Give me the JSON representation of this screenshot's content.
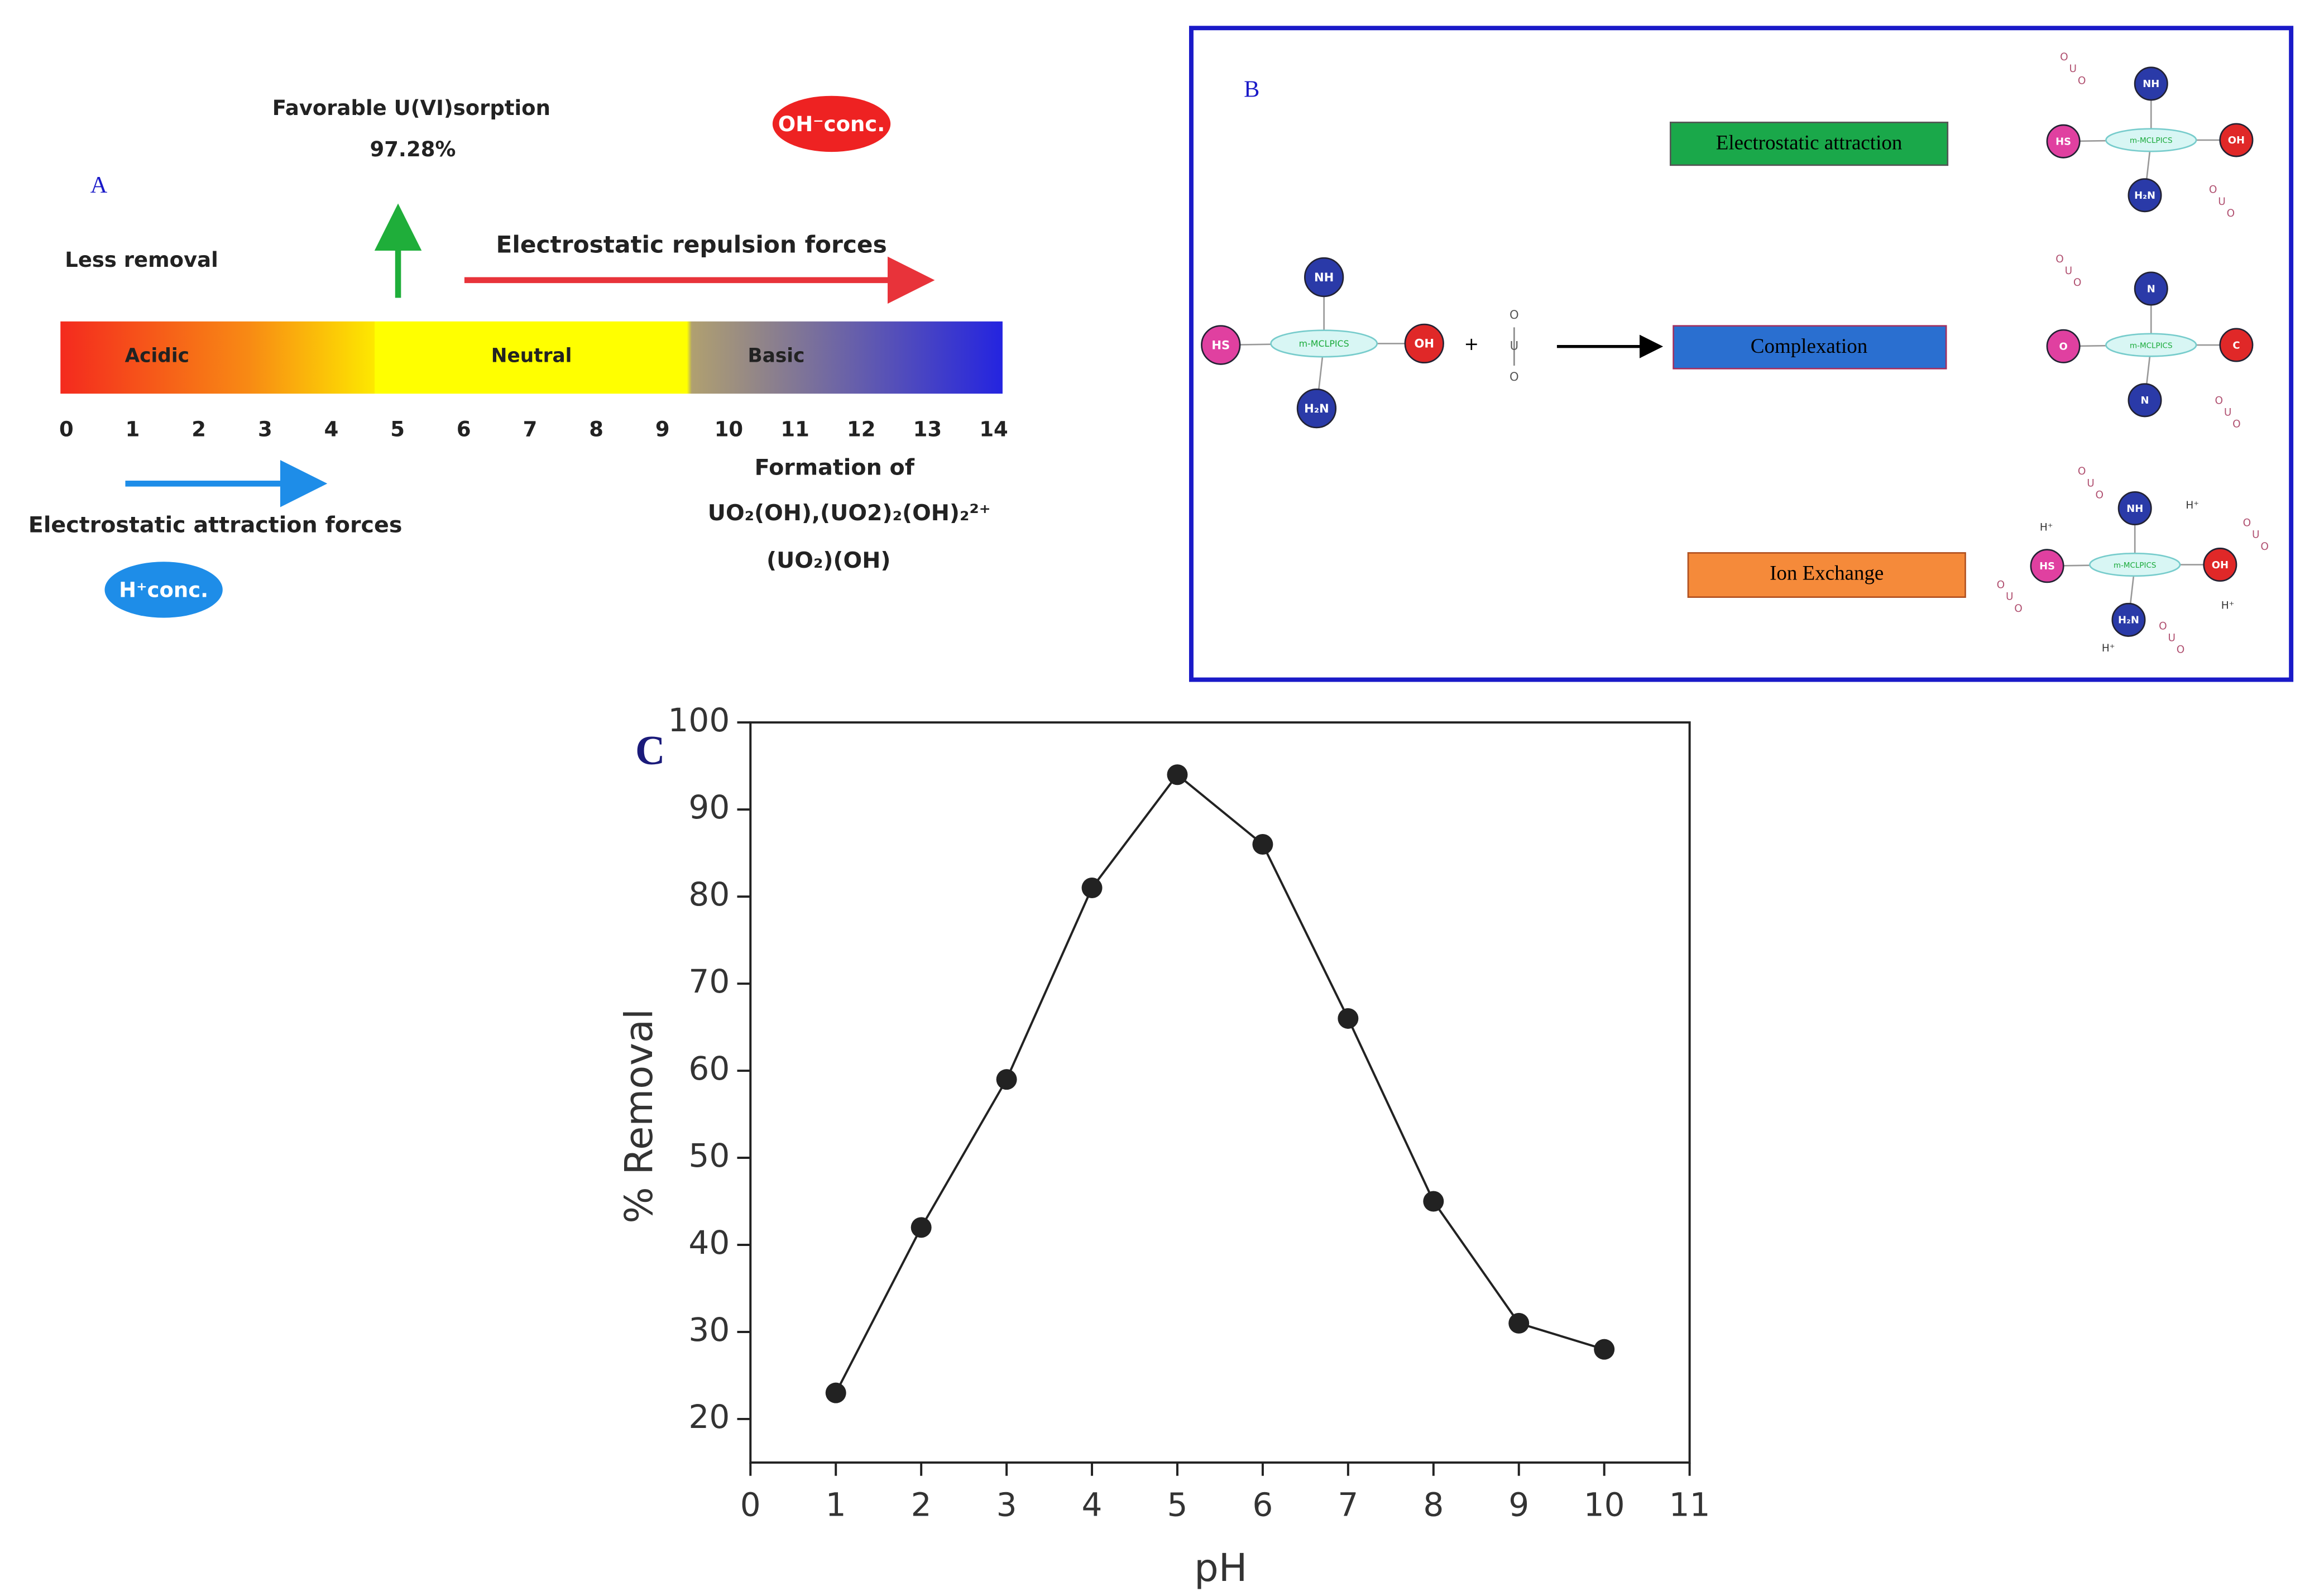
{
  "panel_a": {
    "label": "A",
    "favorable": "Favorable U(VI)sorption",
    "favorable_value": "97.28%",
    "oh_conc": "OH⁻conc.",
    "less_removal": "Less removal",
    "repulsion": "Electrostatic repulsion forces",
    "regions": [
      "Acidic",
      "Neutral",
      "Basic"
    ],
    "scale": [
      "0",
      "1",
      "2",
      "3",
      "4",
      "5",
      "6",
      "7",
      "8",
      "9",
      "10",
      "11",
      "12",
      "13",
      "14"
    ],
    "attraction": "Electrostatic attraction forces",
    "h_conc": "H⁺conc.",
    "formation": [
      "Formation of",
      "UO₂(OH),(UO2)₂(OH)₂²⁺",
      "(UO₂)(OH)"
    ]
  },
  "panel_b": {
    "label": "B",
    "mechanisms": [
      "Electrostatic attraction",
      "Complexation",
      "Ion Exchange"
    ],
    "core": "m-MCLPICS",
    "groups": [
      "NH",
      "HS",
      "OH",
      "H₂N"
    ],
    "complexed_groups": [
      "N",
      "O",
      "C",
      "N"
    ],
    "uranyl": [
      "O",
      "U",
      "O"
    ],
    "plus": "+",
    "proton": "H⁺"
  },
  "chart_data": {
    "type": "line",
    "title": "C",
    "x_label": "pH",
    "y_label": "% Removal",
    "x": [
      1,
      2,
      3,
      4,
      5,
      6,
      7,
      8,
      9,
      10
    ],
    "values": [
      23,
      42,
      59,
      81,
      94,
      86,
      66,
      45,
      31,
      28
    ],
    "color": "#222222",
    "xlim": [
      0,
      11
    ],
    "xticks": [
      0,
      1,
      2,
      3,
      4,
      5,
      6,
      7,
      8,
      9,
      10,
      11
    ],
    "ylim": [
      15,
      100
    ],
    "yticks": [
      20,
      30,
      40,
      50,
      60,
      70,
      80,
      90,
      100
    ]
  }
}
